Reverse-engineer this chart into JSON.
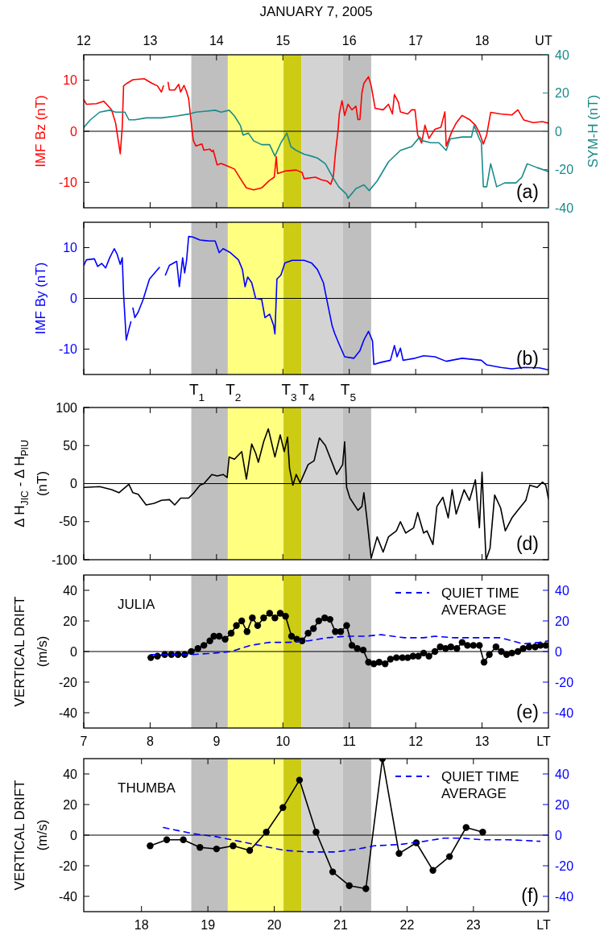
{
  "chart_data": [
    {
      "type": "line",
      "title": "JANUARY 7, 2005",
      "xlabel": "UT",
      "ylabel": "IMF Bz (nT)",
      "y2label": "SYM-H (nT)",
      "xlim": [
        12,
        19
      ],
      "xticks": [
        12,
        13,
        14,
        15,
        16,
        17,
        18
      ],
      "ylim": [
        -15,
        15
      ],
      "yticks": [
        -10,
        0,
        10
      ],
      "y2lim": [
        -40,
        40
      ],
      "y2ticks": [
        -40,
        -20,
        0,
        20,
        40
      ],
      "annotations": [
        "(a)"
      ],
      "ref_lines": [
        {
          "axis": "y",
          "value": 0,
          "color": "#000000"
        }
      ],
      "bands": [
        {
          "axis": "x",
          "from": 13.62,
          "to": 14.17,
          "color": "#bfbfbf"
        },
        {
          "axis": "x",
          "from": 14.17,
          "to": 15.01,
          "color": "#ffff80"
        },
        {
          "axis": "x",
          "from": 15.01,
          "to": 15.28,
          "color": "#cccc14"
        },
        {
          "axis": "x",
          "from": 15.28,
          "to": 15.9,
          "color": "#d3d3d3"
        },
        {
          "axis": "x",
          "from": 15.9,
          "to": 16.33,
          "color": "#bfbfbf"
        }
      ],
      "series": [
        {
          "color": "#ff0000",
          "x": [
            12.0,
            12.04,
            12.19,
            12.3,
            12.36,
            12.42,
            12.48,
            12.55,
            12.58,
            12.6,
            12.65,
            12.74,
            12.91,
            13.03,
            13.11,
            13.17,
            13.2,
            13.23,
            13.27,
            13.29,
            13.37,
            13.43,
            13.46,
            13.51,
            13.55,
            13.58,
            13.62,
            13.65,
            13.69,
            13.78,
            13.81,
            13.9,
            13.93,
            13.95,
            14.01,
            14.07,
            14.16,
            14.27,
            14.36,
            14.45,
            14.56,
            14.68,
            14.8,
            14.87,
            14.9,
            14.92,
            15.03,
            15.2,
            15.29,
            15.32,
            15.49,
            15.58,
            15.67,
            15.72,
            15.76,
            15.79,
            15.83,
            15.85,
            15.89,
            15.93,
            15.98,
            16.04,
            16.1,
            16.13,
            16.16,
            16.19,
            16.22,
            16.29,
            16.33,
            16.39,
            16.51,
            16.59,
            16.65,
            16.68,
            16.74,
            16.77,
            16.88,
            16.94,
            16.99,
            17.03,
            17.09,
            17.14,
            17.2,
            17.29,
            17.38,
            17.44,
            17.46,
            17.55,
            17.61,
            17.7,
            17.81,
            17.9,
            17.96,
            18.02,
            18.07,
            18.13,
            18.28,
            18.45,
            18.54,
            18.63,
            18.77,
            18.91,
            19.0
          ],
          "values": [
            6.2,
            5.3,
            5.4,
            5.9,
            5.1,
            4.2,
            1.6,
            -4.4,
            0.8,
            8.9,
            9.4,
            10.1,
            10.3,
            9.4,
            8.9,
            7.7,
            8.9,
            null,
            9.6,
            8.1,
            8.1,
            9.2,
            7.7,
            9.0,
            7.7,
            6.4,
            1.6,
            -1.8,
            -2.9,
            -2.5,
            -3.7,
            -3.5,
            -4.0,
            -3.7,
            -6.6,
            -6.3,
            -6.8,
            -7.4,
            -9.3,
            -11.1,
            -11.5,
            -11.1,
            -9.6,
            -9.0,
            -5.0,
            -8.3,
            -7.8,
            -7.6,
            -8.1,
            -9.3,
            -9.0,
            -9.5,
            -9.8,
            -10.4,
            -8.9,
            -4.4,
            0.1,
            3.4,
            6.0,
            3.1,
            5.3,
            4.2,
            4.9,
            2.3,
            2.3,
            7.5,
            9.4,
            10.7,
            8.9,
            4.5,
            4.2,
            5.3,
            3.4,
            7.2,
            5.7,
            3.8,
            3.4,
            4.2,
            4.2,
            -0.7,
            -2.3,
            1.2,
            -1.4,
            0.4,
            0.8,
            3.8,
            -2.9,
            0.1,
            1.6,
            3.1,
            2.3,
            1.2,
            -0.3,
            -2.5,
            -0.7,
            3.7,
            3.4,
            3.2,
            4.2,
            2.2,
            1.7,
            1.9,
            1.6
          ]
        },
        {
          "color": "#1a8a8a",
          "axis": "y2",
          "x": [
            12.0,
            12.1,
            12.24,
            12.39,
            12.48,
            12.62,
            12.68,
            12.77,
            12.94,
            13.17,
            13.4,
            13.58,
            13.69,
            13.98,
            14.07,
            14.19,
            14.27,
            14.36,
            14.4,
            14.48,
            14.56,
            14.68,
            14.8,
            14.88,
            14.97,
            15.06,
            15.12,
            15.2,
            15.32,
            15.43,
            15.52,
            15.64,
            15.75,
            15.84,
            15.96,
            15.98,
            16.1,
            16.22,
            16.3,
            16.42,
            16.59,
            16.77,
            16.94,
            17.06,
            17.11,
            17.23,
            17.35,
            17.46,
            17.52,
            17.7,
            17.84,
            17.88,
            17.96,
            17.99,
            18.02,
            18.07,
            18.13,
            18.22,
            18.34,
            18.51,
            18.6,
            18.68,
            18.83,
            19.0
          ],
          "values": [
            2,
            6,
            10,
            11,
            10,
            10,
            6,
            6,
            7,
            7,
            8,
            9,
            10,
            11,
            10,
            11,
            8,
            3,
            -2,
            -1,
            -5,
            -7,
            -7,
            -13,
            -6,
            -1,
            -8,
            -10,
            -12,
            -13,
            -14,
            -17,
            -24,
            -29,
            -33,
            -35,
            -30,
            -28,
            -31,
            -26,
            -16,
            -10,
            -8,
            -3,
            -5,
            -6,
            -6,
            -10,
            -4,
            -3,
            -3,
            3,
            -4,
            -6,
            -29,
            -29,
            -17,
            -29,
            -27,
            -27,
            -24,
            -17,
            -19,
            -21
          ]
        }
      ]
    },
    {
      "type": "line",
      "ylabel": "IMF By (nT)",
      "xlim": [
        12,
        19
      ],
      "xticks": [
        12,
        13,
        14,
        15,
        16,
        17,
        18
      ],
      "ylim": [
        -15,
        15
      ],
      "yticks": [
        -10,
        0,
        10
      ],
      "tick_labels": "y",
      "annotations": [
        "(b)"
      ],
      "ref_lines": [
        {
          "axis": "y",
          "value": 0,
          "color": "#000000"
        }
      ],
      "bands": [
        {
          "axis": "x",
          "from": 13.62,
          "to": 14.17,
          "color": "#bfbfbf",
          "label": "T$_{1}$"
        },
        {
          "axis": "x",
          "from": 14.17,
          "to": 15.01,
          "color": "#ffff80",
          "label": "T$_{2}$"
        },
        {
          "axis": "x",
          "from": 15.01,
          "to": 15.28,
          "color": "#cccc14",
          "label": "T$_{3}$"
        },
        {
          "axis": "x",
          "from": 15.28,
          "to": 15.9,
          "color": "#d3d3d3",
          "label": "T$_{4}$"
        },
        {
          "axis": "x",
          "from": 15.9,
          "to": 16.33,
          "color": "#bfbfbf",
          "label": "T$_{5}$"
        }
      ],
      "series": [
        {
          "color": "#0000ff",
          "x": [
            12.0,
            12.04,
            12.16,
            12.21,
            12.27,
            12.33,
            12.39,
            12.46,
            12.5,
            12.55,
            12.58,
            12.6,
            12.64,
            12.68,
            12.71,
            12.72,
            12.74,
            12.77,
            12.82,
            12.89,
            12.99,
            13.14,
            13.18,
            13.23,
            13.29,
            13.4,
            13.44,
            13.49,
            13.52,
            13.55,
            13.58,
            13.64,
            13.75,
            13.9,
            13.98,
            14.04,
            14.1,
            14.21,
            14.33,
            14.39,
            14.43,
            14.47,
            14.53,
            14.59,
            14.68,
            14.73,
            14.8,
            14.86,
            14.88,
            14.91,
            14.97,
            15.03,
            15.14,
            15.32,
            15.43,
            15.52,
            15.61,
            15.67,
            15.74,
            15.78,
            15.84,
            15.93,
            16.07,
            16.16,
            16.22,
            16.29,
            16.35,
            16.37,
            16.48,
            16.62,
            16.68,
            16.72,
            16.77,
            16.81,
            16.99,
            17.12,
            17.29,
            17.46,
            17.7,
            17.99,
            18.07,
            18.28,
            18.45,
            18.63,
            18.86,
            19.0
          ],
          "values": [
            6.5,
            7.6,
            7.8,
            6.3,
            6.9,
            6.0,
            8.0,
            9.8,
            8.8,
            6.7,
            8.0,
            0.8,
            -8.2,
            -6.1,
            -4.6,
            null,
            -1.9,
            -3.8,
            -2.7,
            -0.4,
            3.8,
            6.1,
            null,
            4.6,
            6.5,
            7.3,
            2.3,
            8.0,
            5.0,
            7.6,
            12.2,
            12.1,
            11.5,
            11.3,
            11.3,
            9.0,
            9.8,
            9.0,
            7.6,
            5.7,
            2.3,
            4.2,
            3.1,
            0.0,
            -0.2,
            -3.8,
            -3.1,
            -5.3,
            -7.0,
            3.8,
            4.6,
            7.0,
            7.5,
            7.5,
            7.0,
            5.7,
            3.1,
            -0.8,
            -5.3,
            -6.9,
            -8.8,
            -11.5,
            -11.8,
            -10.3,
            -8.2,
            -6.5,
            -8.4,
            -13.0,
            -12.6,
            -12.2,
            -9.3,
            -11.5,
            -9.8,
            -12.2,
            -11.8,
            -11.3,
            -11.5,
            -12.4,
            -11.8,
            -12.2,
            -13.1,
            -13.6,
            -13.9,
            -13.6,
            -13.7,
            -14.1
          ]
        }
      ]
    },
    {
      "type": "line",
      "ylabel": "Δ H$_{JIC}$ - Δ H$_{PIU}$ (nT)",
      "xlim": [
        12,
        19
      ],
      "xticks": [
        12,
        13,
        14,
        15,
        16,
        17,
        18
      ],
      "ylim": [
        -100,
        100
      ],
      "yticks": [
        -100,
        -50,
        0,
        50,
        100
      ],
      "tick_labels": "y",
      "annotations": [
        "(d)"
      ],
      "ref_lines": [
        {
          "axis": "y",
          "value": 0,
          "color": "#000000"
        }
      ],
      "bands": [
        {
          "axis": "x",
          "from": 13.62,
          "to": 14.17,
          "color": "#bfbfbf"
        },
        {
          "axis": "x",
          "from": 14.17,
          "to": 15.01,
          "color": "#ffff80"
        },
        {
          "axis": "x",
          "from": 15.01,
          "to": 15.28,
          "color": "#cccc14"
        },
        {
          "axis": "x",
          "from": 15.28,
          "to": 15.9,
          "color": "#d3d3d3"
        },
        {
          "axis": "x",
          "from": 15.9,
          "to": 16.33,
          "color": "#bfbfbf"
        }
      ],
      "series": [
        {
          "color": "#000000",
          "x": [
            12.0,
            12.24,
            12.42,
            12.53,
            12.68,
            12.74,
            12.82,
            12.94,
            13.06,
            13.17,
            13.29,
            13.37,
            13.46,
            13.58,
            13.66,
            13.75,
            13.81,
            13.93,
            14.01,
            14.1,
            14.16,
            14.19,
            14.27,
            14.38,
            14.45,
            14.53,
            14.59,
            14.63,
            14.71,
            14.78,
            14.88,
            14.96,
            15.02,
            15.07,
            15.1,
            15.15,
            15.2,
            15.26,
            15.38,
            15.47,
            15.55,
            15.64,
            15.73,
            15.81,
            15.9,
            15.93,
            15.96,
            16.01,
            16.13,
            16.19,
            16.22,
            16.26,
            16.33,
            16.42,
            16.51,
            16.59,
            16.71,
            16.77,
            16.85,
            16.97,
            17.03,
            17.12,
            17.17,
            17.26,
            17.32,
            17.41,
            17.49,
            17.55,
            17.61,
            17.73,
            17.81,
            17.9,
            17.96,
            18.0,
            18.06,
            18.12,
            18.19,
            18.28,
            18.35,
            18.45,
            18.54,
            18.66,
            18.72,
            18.83,
            18.91,
            18.96,
            19.0
          ],
          "values": [
            -5,
            -4,
            -8,
            -12,
            -1,
            -12,
            -14,
            -28,
            -26,
            -22,
            -21,
            -28,
            -19,
            -19,
            -12,
            -2,
            0,
            12,
            10,
            12,
            8,
            35,
            32,
            42,
            6,
            52,
            40,
            28,
            55,
            72,
            35,
            64,
            42,
            61,
            20,
            -2,
            12,
            1,
            25,
            30,
            60,
            50,
            30,
            12,
            25,
            55,
            -5,
            -19,
            -35,
            -30,
            -12,
            -42,
            -98,
            -70,
            -90,
            -70,
            -62,
            -50,
            -65,
            -58,
            -38,
            -65,
            -62,
            -80,
            -30,
            -18,
            -45,
            -8,
            -40,
            -8,
            -22,
            5,
            -58,
            15,
            -100,
            -85,
            -15,
            -32,
            -62,
            -45,
            -35,
            -22,
            -2,
            -5,
            2,
            -2,
            -20
          ]
        }
      ]
    },
    {
      "type": "line",
      "xlabel": "LT",
      "ylabel": "VERTICAL DRIFT (m/s)",
      "xlim": [
        7,
        14
      ],
      "xticks": [
        7,
        8,
        9,
        10,
        11,
        12,
        13
      ],
      "ylim": [
        -50,
        50
      ],
      "yticks": [
        -40,
        -20,
        0,
        20,
        40
      ],
      "y2lim": [
        -50,
        50
      ],
      "y2ticks": [
        -40,
        -20,
        0,
        20,
        40
      ],
      "legend": "top right",
      "annotations": [
        "JULIA",
        "(e)"
      ],
      "ref_lines": [
        {
          "axis": "y",
          "value": 0,
          "color": "#000000"
        }
      ],
      "bands": [
        {
          "axis": "x",
          "from": 8.62,
          "to": 9.17,
          "color": "#bfbfbf"
        },
        {
          "axis": "x",
          "from": 9.17,
          "to": 10.01,
          "color": "#ffff80"
        },
        {
          "axis": "x",
          "from": 10.01,
          "to": 10.28,
          "color": "#cccc14"
        },
        {
          "axis": "x",
          "from": 10.28,
          "to": 10.9,
          "color": "#d3d3d3"
        },
        {
          "axis": "x",
          "from": 10.9,
          "to": 11.33,
          "color": "#bfbfbf"
        }
      ],
      "series": [
        {
          "color": "#000000",
          "marker": "circle",
          "x": [
            8.01,
            8.11,
            8.22,
            8.32,
            8.42,
            8.52,
            8.62,
            8.72,
            8.81,
            8.9,
            8.96,
            9.04,
            9.13,
            9.22,
            9.3,
            9.38,
            9.46,
            9.54,
            9.62,
            9.71,
            9.8,
            9.88,
            9.96,
            10.04,
            10.13,
            10.21,
            10.29,
            10.38,
            10.46,
            10.54,
            10.63,
            10.71,
            10.79,
            10.87,
            10.96,
            11.04,
            11.12,
            11.21,
            11.29,
            11.37,
            11.45,
            11.54,
            11.62,
            11.71,
            11.8,
            11.88,
            11.96,
            12.04,
            12.12,
            12.2,
            12.29,
            12.37,
            12.45,
            12.53,
            12.62,
            12.7,
            12.78,
            12.87,
            12.96,
            13.03,
            13.11,
            13.21,
            13.29,
            13.37,
            13.45,
            13.54,
            13.62,
            13.71,
            13.8,
            13.88,
            13.96
          ],
          "values": [
            -4,
            -3,
            -2,
            -2,
            -2,
            -2,
            0,
            2,
            4,
            7,
            10,
            10,
            8,
            12,
            17,
            20,
            13,
            22,
            17,
            22,
            25,
            22,
            25,
            23,
            10,
            8,
            7,
            12,
            15,
            20,
            22,
            21,
            13,
            13,
            17,
            4,
            2,
            1,
            -7,
            -8,
            -7,
            -8,
            -5,
            -4,
            -4,
            -4,
            -3,
            -3,
            -1,
            -3,
            0,
            3,
            2,
            3,
            2,
            6,
            4,
            4,
            4,
            -7,
            -2,
            3,
            0,
            -2,
            -1,
            0,
            2,
            3,
            3,
            4,
            4
          ]
        },
        {
          "name": "QUIET TIME AVERAGE",
          "color": "#0000ff",
          "axis": "y2",
          "line_style": "dashed",
          "x": [
            8.01,
            8.64,
            8.98,
            9.22,
            9.51,
            9.8,
            10.09,
            10.38,
            10.67,
            10.96,
            11.25,
            11.48,
            11.83,
            12.12,
            12.29,
            12.58,
            12.98,
            13.28,
            13.62,
            13.86,
            14.0
          ],
          "values": [
            -2,
            -2,
            -1,
            0,
            4,
            6,
            6,
            7,
            9,
            10,
            10,
            11,
            9,
            9,
            10,
            9,
            9,
            9,
            5,
            6,
            7
          ]
        }
      ]
    },
    {
      "type": "line",
      "xlabel": "LT",
      "ylabel": "VERTICAL DRIFT (m/s)",
      "xlim": [
        17.13,
        24.13
      ],
      "xticks": [
        18,
        19,
        20,
        21,
        22,
        23
      ],
      "ylim": [
        -50,
        50
      ],
      "yticks": [
        -40,
        -20,
        0,
        20,
        40
      ],
      "y2lim": [
        -50,
        50
      ],
      "y2ticks": [
        -40,
        -20,
        0,
        20,
        40
      ],
      "legend": "top right",
      "annotations": [
        "THUMBA",
        "(f)"
      ],
      "ref_lines": [
        {
          "axis": "y",
          "value": 0,
          "color": "#000000"
        }
      ],
      "bands": [
        {
          "axis": "x",
          "from": 18.75,
          "to": 19.3,
          "color": "#bfbfbf"
        },
        {
          "axis": "x",
          "from": 19.3,
          "to": 20.14,
          "color": "#ffff80"
        },
        {
          "axis": "x",
          "from": 20.14,
          "to": 20.41,
          "color": "#cccc14"
        },
        {
          "axis": "x",
          "from": 20.41,
          "to": 21.03,
          "color": "#d3d3d3"
        },
        {
          "axis": "x",
          "from": 21.03,
          "to": 21.46,
          "color": "#bfbfbf"
        }
      ],
      "series": [
        {
          "color": "#000000",
          "marker": "circle",
          "x": [
            18.13,
            18.38,
            18.63,
            18.88,
            19.13,
            19.38,
            19.63,
            19.88,
            20.13,
            20.38,
            20.63,
            20.88,
            21.13,
            21.38,
            21.63,
            21.88,
            22.14,
            22.39,
            22.64,
            22.89,
            23.14
          ],
          "values": [
            -7,
            -3,
            -3,
            -8,
            -9,
            -7,
            -10,
            2,
            18,
            36,
            2,
            -24,
            -33,
            -35,
            50,
            -12,
            -5,
            -23,
            -14,
            5,
            2
          ]
        },
        {
          "name": "QUIET TIME AVERAGE",
          "color": "#0000ff",
          "axis": "y2",
          "line_style": "dashed",
          "x": [
            18.33,
            18.77,
            19.12,
            19.47,
            19.81,
            20.16,
            20.51,
            20.92,
            21.27,
            21.5,
            21.91,
            22.26,
            22.55,
            22.84,
            23.13,
            23.53,
            24.0
          ],
          "values": [
            5,
            1,
            -1,
            -4,
            -7,
            -10,
            -11,
            -11,
            -9,
            -7,
            -6,
            -4,
            -2,
            -2,
            -3,
            -3,
            -4
          ]
        }
      ]
    }
  ]
}
